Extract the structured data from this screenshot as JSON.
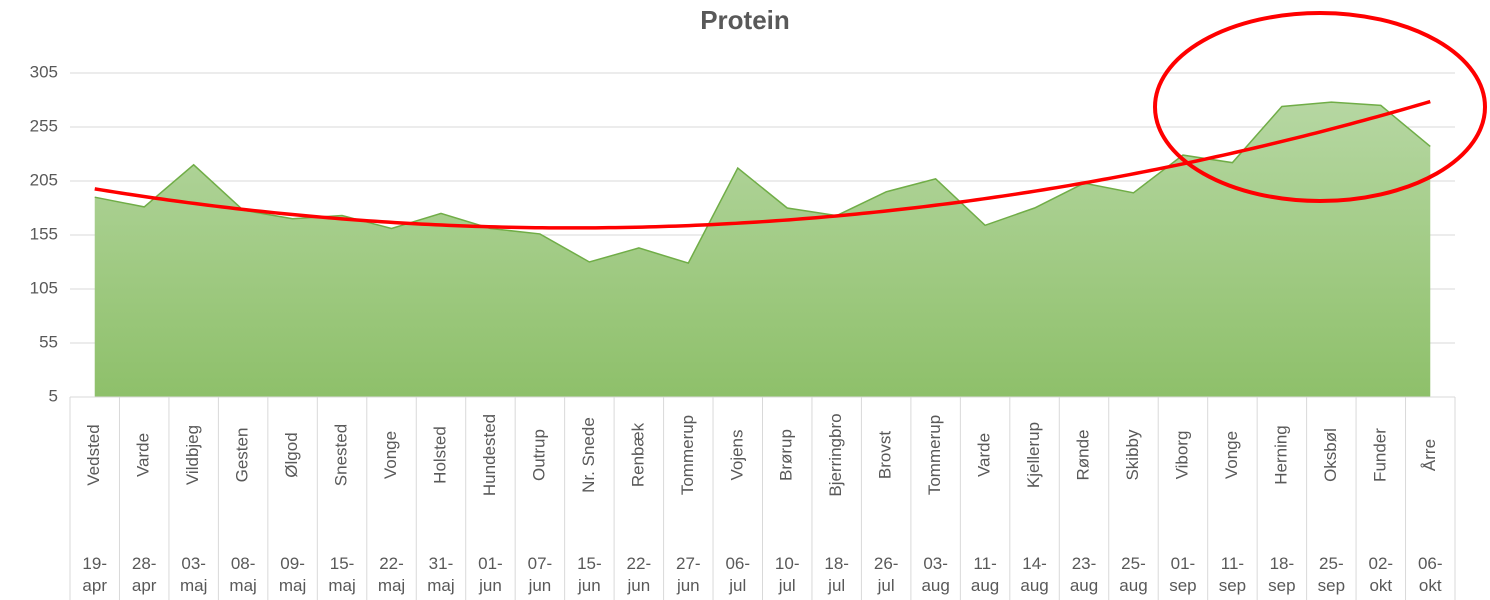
{
  "chart_data": {
    "type": "area",
    "title": "Protein",
    "categories": [
      "Vedsted",
      "Varde",
      "Vildbjeg",
      "Gesten",
      "Ølgod",
      "Snested",
      "Vonge",
      "Holsted",
      "Hundested",
      "Outrup",
      "Nr. Snede",
      "Renbæk",
      "Tommerup",
      "Vojens",
      "Brørup",
      "Bjerringbro",
      "Brovst",
      "Tommerup",
      "Varde",
      "Kjellerup",
      "Rønde",
      "Skibby",
      "Viborg",
      "Vonge",
      "Herning",
      "Oksbøl",
      "Funder",
      "Årre"
    ],
    "dates": [
      "19-apr",
      "28-apr",
      "03-maj",
      "08-maj",
      "09-maj",
      "15-maj",
      "22-maj",
      "31-maj",
      "01-jun",
      "07-jun",
      "15-jun",
      "22-jun",
      "27-jun",
      "06-jul",
      "10-jul",
      "18-jul",
      "26-jul",
      "03-aug",
      "11-aug",
      "14-aug",
      "23-aug",
      "25-aug",
      "01-sep",
      "11-sep",
      "18-sep",
      "25-sep",
      "02-okt",
      "06-okt"
    ],
    "values": [
      190,
      181,
      220,
      178,
      170,
      173,
      161,
      175,
      161,
      156,
      130,
      143,
      129,
      217,
      180,
      173,
      195,
      207,
      164,
      180,
      203,
      194,
      229,
      222,
      274,
      278,
      275,
      237
    ],
    "color": "#70ad47",
    "ylim": [
      5,
      305
    ],
    "yticks": [
      5,
      55,
      105,
      155,
      205,
      255,
      305
    ],
    "grid": true,
    "trendline": {
      "type": "polynomial",
      "order": 2,
      "color": "#ff0000"
    }
  }
}
